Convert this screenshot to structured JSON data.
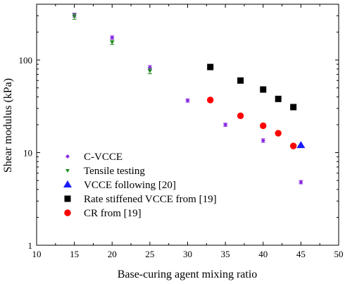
{
  "chart_data": {
    "type": "scatter",
    "xlabel": "Base-curing agent mixing ratio",
    "ylabel": "Shear modulus (kPa)",
    "xlim": [
      10,
      50
    ],
    "ylim": [
      1,
      400
    ],
    "yscale": "log",
    "x_ticks": [
      "10",
      "15",
      "20",
      "25",
      "30",
      "35",
      "40",
      "45",
      "50"
    ],
    "y_ticks": [
      "1",
      "10",
      "100"
    ],
    "grid": false,
    "legend_position": "bottom-left",
    "series": [
      {
        "name": "C-VCCE",
        "marker": "small-diamond",
        "color": "#8a2be2",
        "points": [
          {
            "x": 15,
            "y": 305,
            "err": 15
          },
          {
            "x": 20,
            "y": 175,
            "err": 7
          },
          {
            "x": 25,
            "y": 83,
            "err": 4
          },
          {
            "x": 30,
            "y": 36.5,
            "err": 1.5
          },
          {
            "x": 35,
            "y": 20,
            "err": 0.8
          },
          {
            "x": 40,
            "y": 13.5,
            "err": 0.6
          },
          {
            "x": 45,
            "y": 4.8,
            "err": 0.2
          }
        ]
      },
      {
        "name": "Tensile testing",
        "marker": "small-down-triangle",
        "color": "#1f8a1f",
        "points": [
          {
            "x": 15,
            "y": 295,
            "err": 20
          },
          {
            "x": 20,
            "y": 155,
            "err": 8
          },
          {
            "x": 25,
            "y": 76,
            "err": 5
          }
        ]
      },
      {
        "name": "VCCE following [20]",
        "marker": "triangle",
        "color": "#1a1aff",
        "points": [
          {
            "x": 45,
            "y": 12,
            "err": 0
          }
        ]
      },
      {
        "name": "Rate stiffened VCCE from [19]",
        "marker": "square",
        "color": "#000000",
        "points": [
          {
            "x": 33,
            "y": 84,
            "err": 0
          },
          {
            "x": 37,
            "y": 60,
            "err": 0
          },
          {
            "x": 40,
            "y": 48,
            "err": 0
          },
          {
            "x": 42,
            "y": 38,
            "err": 0
          },
          {
            "x": 44,
            "y": 31,
            "err": 0
          }
        ]
      },
      {
        "name": "CR from [19]",
        "marker": "circle",
        "color": "#ff0000",
        "points": [
          {
            "x": 33,
            "y": 37,
            "err": 0
          },
          {
            "x": 37,
            "y": 25,
            "err": 0
          },
          {
            "x": 40,
            "y": 19.5,
            "err": 0
          },
          {
            "x": 42,
            "y": 16.2,
            "err": 0
          },
          {
            "x": 44,
            "y": 11.8,
            "err": 0
          }
        ]
      }
    ]
  }
}
